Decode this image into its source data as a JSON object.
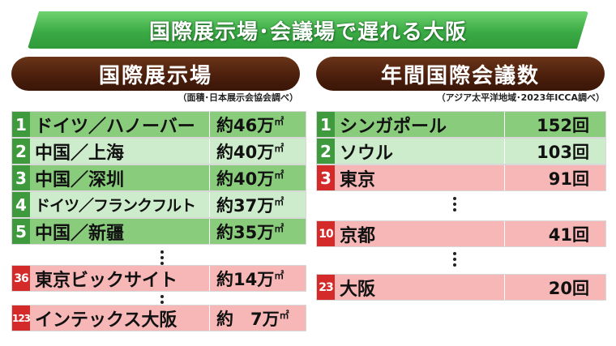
{
  "title": "国際展示場･会議場で遅れる大阪",
  "exhibition": {
    "header": "国際展示場",
    "note": "（面積･日本展示会協会調べ）",
    "unit_suffix": "㎡",
    "rows": [
      {
        "rank": "1",
        "name": "ドイツ／ハノーバー",
        "value": "約46万",
        "highlight": false
      },
      {
        "rank": "2",
        "name": "中国／上海",
        "value": "約40万",
        "highlight": false
      },
      {
        "rank": "3",
        "name": "中国／深圳",
        "value": "約40万",
        "highlight": false
      },
      {
        "rank": "4",
        "name": "ドイツ／フランクフルト",
        "value": "約37万",
        "highlight": false
      },
      {
        "rank": "5",
        "name": "中国／新疆",
        "value": "約35万",
        "highlight": false
      },
      {
        "rank": "36",
        "name": "東京ビックサイト",
        "value": "約14万",
        "highlight": true
      },
      {
        "rank": "123",
        "name": "インテックス大阪",
        "value": "約　7万",
        "highlight": true
      }
    ]
  },
  "conference": {
    "header": "年間国際会議数",
    "note": "（アジア太平洋地域･2023年ICCA調べ）",
    "rows": [
      {
        "rank": "1",
        "name": "シンガポール",
        "value": "152回",
        "highlight": false
      },
      {
        "rank": "2",
        "name": "ソウル",
        "value": "103回",
        "highlight": false
      },
      {
        "rank": "3",
        "name": "東京",
        "value": "91回",
        "highlight": true
      },
      {
        "rank": "10",
        "name": "京都",
        "value": "41回",
        "highlight": true
      },
      {
        "rank": "23",
        "name": "大阪",
        "value": "20回",
        "highlight": true
      }
    ]
  }
}
